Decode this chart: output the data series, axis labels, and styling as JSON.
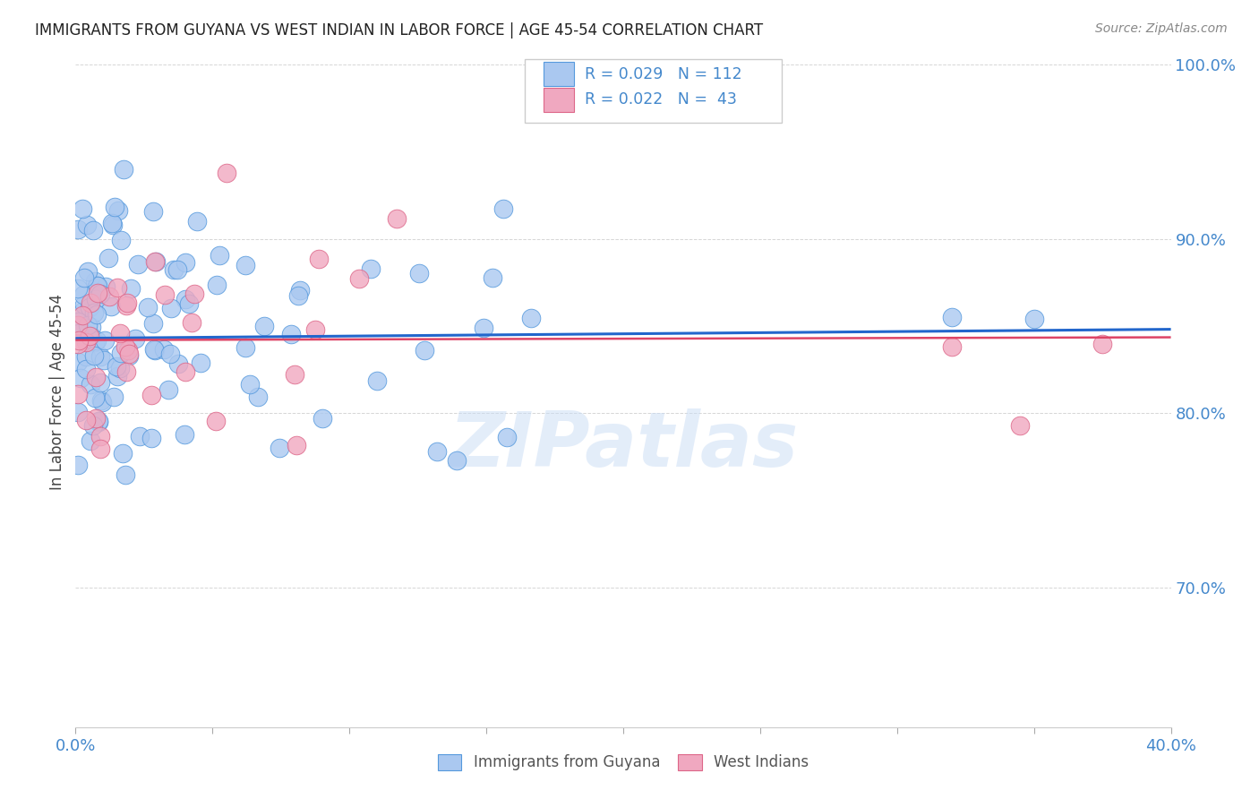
{
  "title": "IMMIGRANTS FROM GUYANA VS WEST INDIAN IN LABOR FORCE | AGE 45-54 CORRELATION CHART",
  "source": "Source: ZipAtlas.com",
  "ylabel": "In Labor Force | Age 45-54",
  "xlim": [
    0.0,
    0.4
  ],
  "ylim": [
    0.62,
    1.005
  ],
  "xtick_positions": [
    0.0,
    0.05,
    0.1,
    0.15,
    0.2,
    0.25,
    0.3,
    0.35,
    0.4
  ],
  "xtick_labels": [
    "0.0%",
    "",
    "",
    "",
    "",
    "",
    "",
    "",
    "40.0%"
  ],
  "ytick_positions": [
    0.7,
    0.8,
    0.9,
    1.0
  ],
  "ytick_labels": [
    "70.0%",
    "80.0%",
    "90.0%",
    "100.0%"
  ],
  "blue_fill": "#aac8f0",
  "blue_edge": "#5599dd",
  "pink_fill": "#f0a8c0",
  "pink_edge": "#dd6688",
  "blue_line_color": "#2266cc",
  "pink_line_color": "#dd4466",
  "grid_color": "#cccccc",
  "axis_tick_color": "#4488cc",
  "ylabel_color": "#444444",
  "title_color": "#222222",
  "source_color": "#888888",
  "watermark_color": "#c8dcf5",
  "legend_label1": "Immigrants from Guyana",
  "legend_label2": "West Indians"
}
